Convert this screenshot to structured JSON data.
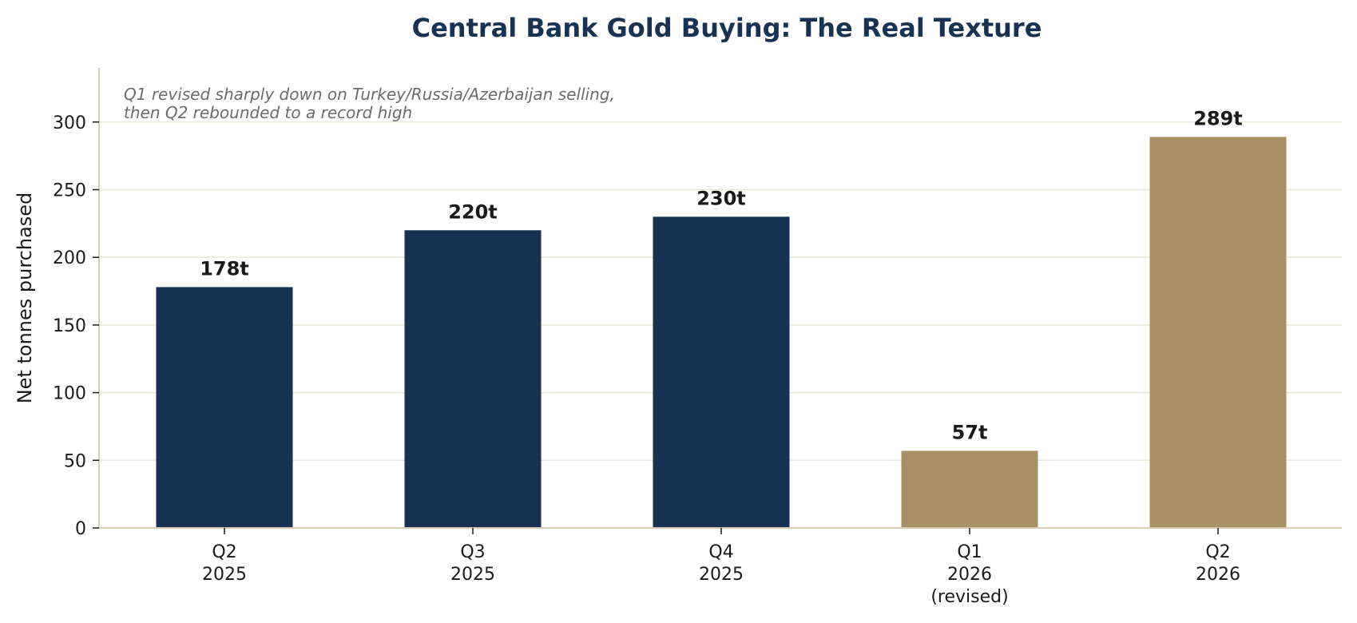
{
  "chart_data": {
    "type": "bar",
    "title": "Central Bank Gold Buying: The Real Texture",
    "ylabel": "Net tonnes purchased",
    "xlabel": "",
    "ylim": [
      0,
      340
    ],
    "yticks": [
      0,
      50,
      100,
      150,
      200,
      250,
      300
    ],
    "grid": true,
    "categories": [
      [
        "Q2",
        "2025"
      ],
      [
        "Q3",
        "2025"
      ],
      [
        "Q4",
        "2025"
      ],
      [
        "Q1",
        "2026",
        "(revised)"
      ],
      [
        "Q2",
        "2026"
      ]
    ],
    "values": [
      178,
      220,
      230,
      57,
      289
    ],
    "data_labels": [
      "178t",
      "220t",
      "230t",
      "57t",
      "289t"
    ],
    "bar_colors": [
      "#173253",
      "#173253",
      "#173253",
      "#a89063",
      "#a89063"
    ],
    "annotation": [
      "Q1 revised sharply down on Turkey/Russia/Azerbaijan selling,",
      "then Q2 rebounded to a record high"
    ],
    "colors": {
      "title": "#173253",
      "grid": "#e8e8dc",
      "axis": "#d6ccbc"
    }
  }
}
